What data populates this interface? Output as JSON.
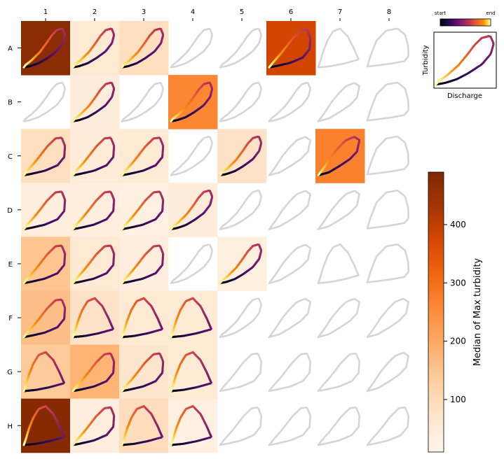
{
  "chart_data": {
    "type": "heatmap",
    "columns": [
      "1",
      "2",
      "3",
      "4",
      "5",
      "6",
      "7",
      "8"
    ],
    "rows": [
      "A",
      "B",
      "C",
      "D",
      "E",
      "F",
      "G",
      "H"
    ],
    "colorbar": {
      "label": "Median of Max turbidity",
      "ticks": [
        100,
        200,
        300,
        400
      ],
      "range": [
        10,
        490
      ],
      "colormap": "Oranges"
    },
    "legend": {
      "start_label": "start",
      "end_label": "end",
      "ylabel": "Turbidity",
      "xlabel": "Discharge",
      "colormap": "inferno"
    },
    "cells": [
      [
        470,
        60,
        90,
        null,
        null,
        380,
        null,
        null
      ],
      [
        null,
        45,
        null,
        260,
        null,
        null,
        null,
        null
      ],
      [
        90,
        50,
        55,
        null,
        80,
        null,
        270,
        null
      ],
      [
        40,
        40,
        30,
        45,
        null,
        null,
        null,
        null
      ],
      [
        150,
        60,
        40,
        null,
        35,
        null,
        null,
        null
      ],
      [
        160,
        80,
        60,
        55,
        null,
        null,
        null,
        null
      ],
      [
        140,
        180,
        70,
        55,
        null,
        null,
        null,
        null
      ],
      [
        480,
        40,
        95,
        30,
        null,
        null,
        null,
        null
      ]
    ],
    "loop_shapes": [
      [
        "A",
        "A",
        "A",
        "A",
        "A",
        "B",
        "C",
        "D"
      ],
      [
        "A",
        "A",
        "A",
        "A",
        "A",
        "A",
        "E",
        "D"
      ],
      [
        "B",
        "B",
        "B",
        "A",
        "A",
        "E",
        "E",
        "D"
      ],
      [
        "B",
        "B",
        "B",
        "A",
        "A",
        "E",
        "E",
        "D"
      ],
      [
        "B",
        "B",
        "B",
        "A",
        "A",
        "E",
        "C",
        "D"
      ],
      [
        "B",
        "C",
        "C",
        "C",
        "A",
        "E",
        "E",
        "E"
      ],
      [
        "C",
        "B",
        "B",
        "C",
        "B",
        "B",
        "B",
        "E"
      ],
      [
        "C",
        "B",
        "C",
        "C",
        "B",
        "B",
        "B",
        "B"
      ]
    ]
  },
  "colors": {
    "heat_low": "#fff5eb",
    "heat_high": "#7f2704",
    "faded_loop": "#d6d4d6"
  }
}
